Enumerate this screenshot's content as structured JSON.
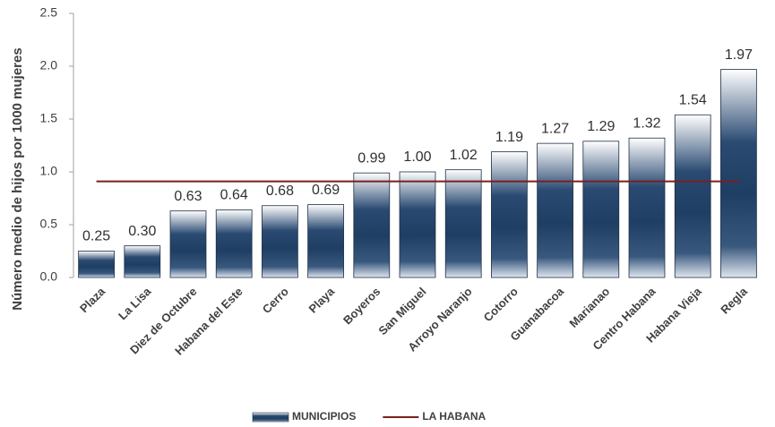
{
  "chart_data": {
    "type": "bar",
    "y_label": "Número medio de hijos por 1000 mujeres",
    "categories": [
      "Plaza",
      "La Lisa",
      "Diez de Octubre",
      "Habana del Este",
      "Cerro",
      "Playa",
      "Boyeros",
      "San Miguel",
      "Arroyo Naranjo",
      "Cotorro",
      "Guanabacoa",
      "Marianao",
      "Centro Habana",
      "Habana Vieja",
      "Regla"
    ],
    "series": [
      {
        "name": "MUNICIPIOS",
        "type": "bar",
        "color": "#1f3e63",
        "values": [
          0.25,
          0.3,
          0.63,
          0.64,
          0.68,
          0.69,
          0.99,
          1.0,
          1.02,
          1.19,
          1.27,
          1.29,
          1.32,
          1.54,
          1.97
        ],
        "value_labels": [
          "0.25",
          "0.30",
          "0.63",
          "0.64",
          "0.68",
          "0.69",
          "0.99",
          "1.00",
          "1.02",
          "1.19",
          "1.27",
          "1.29",
          "1.32",
          "1.54",
          "1.97"
        ]
      },
      {
        "name": "LA HABANA",
        "type": "line",
        "color": "#7b1f1f",
        "values": [
          0.91,
          0.91,
          0.91,
          0.91,
          0.91,
          0.91,
          0.91,
          0.91,
          0.91,
          0.91,
          0.91,
          0.91,
          0.91,
          0.91,
          0.91
        ]
      }
    ],
    "ylim": [
      0,
      2.5
    ],
    "yticks": [
      {
        "value": 0,
        "label": "0.0"
      },
      0.5,
      {
        "value": 1,
        "label": "1.0"
      },
      1.5,
      {
        "value": 2,
        "label": "2.0"
      },
      2.5
    ],
    "legend": "bottom"
  }
}
